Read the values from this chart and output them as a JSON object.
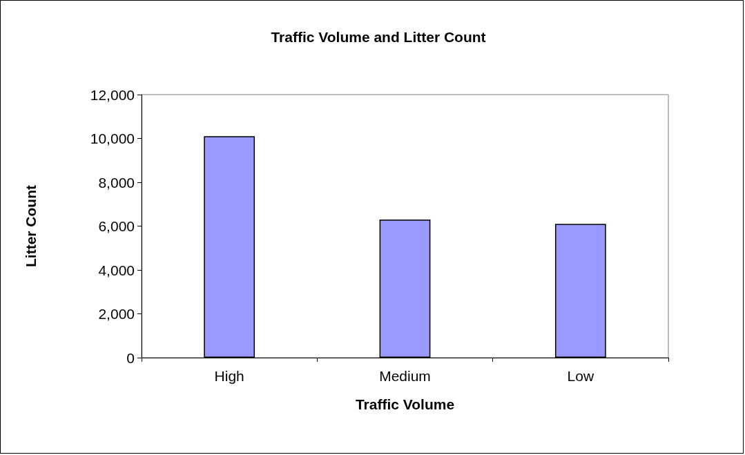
{
  "chart_data": {
    "type": "bar",
    "title": "Traffic Volume and Litter Count",
    "xlabel": "Traffic Volume",
    "ylabel": "Litter Count",
    "categories": [
      "High",
      "Medium",
      "Low"
    ],
    "values": [
      10100,
      6300,
      6100
    ],
    "color": "#9999ff",
    "ylim": [
      0,
      12000
    ],
    "yticks": [
      {
        "value": 0,
        "label": "0"
      },
      {
        "value": 2000,
        "label": "2,000"
      },
      {
        "value": 4000,
        "label": "4,000"
      },
      {
        "value": 6000,
        "label": "6,000"
      },
      {
        "value": 8000,
        "label": "8,000"
      },
      {
        "value": 10000,
        "label": "10,000"
      },
      {
        "value": 12000,
        "label": "12,000"
      }
    ],
    "grid": false
  }
}
